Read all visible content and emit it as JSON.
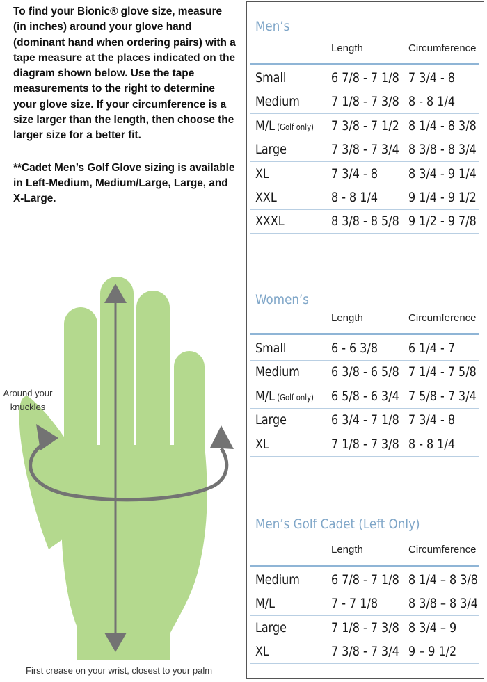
{
  "intro": {
    "paragraph": "To find your Bionic® glove size, measure (in inches) around your glove hand (dominant hand when ordering pairs) with a tape measure at the places indicated on the diagram shown below. Use the tape measurements to the right to determine your glove size. If your circumference is a size larger than the length, then choose the larger size for a better fit.",
    "note": "**Cadet Men’s Golf Glove sizing is available in Left-Medium, Medium/Large, Large, and X-Large."
  },
  "diagram": {
    "knuckles_label_line1": "Around your",
    "knuckles_label_line2": "knuckles",
    "wrist_label": "First crease on your wrist, closest to your palm",
    "colors": {
      "hand": "#b4d98e",
      "arrow": "#737373"
    }
  },
  "tables": {
    "column_length": "Length",
    "column_circumference": "Circumference",
    "accent_color": "#7fa6c8",
    "mens": {
      "title": "Men’s",
      "rows": [
        {
          "size": "Small",
          "length": "6 7/8 - 7 1/8",
          "circumference": "7 3/4 - 8"
        },
        {
          "size": "Medium",
          "length": "7 1/8 - 7 3/8",
          "circumference": "8 - 8 1/4"
        },
        {
          "size": "M/L",
          "note": "(Golf only)",
          "length": "7 3/8 - 7 1/2",
          "circumference": "8 1/4 - 8 3/8"
        },
        {
          "size": "Large",
          "length": "7 3/8 - 7 3/4",
          "circumference": "8 3/8 - 8 3/4"
        },
        {
          "size": "XL",
          "length": "7 3/4 - 8",
          "circumference": "8 3/4 - 9 1/4"
        },
        {
          "size": "XXL",
          "length": "8 - 8 1/4",
          "circumference": "9 1/4 - 9 1/2"
        },
        {
          "size": "XXXL",
          "length": "8 3/8 - 8 5/8",
          "circumference": "9 1/2 - 9 7/8"
        }
      ]
    },
    "womens": {
      "title": "Women’s",
      "rows": [
        {
          "size": "Small",
          "length": "6 - 6 3/8",
          "circumference": "6 1/4 - 7"
        },
        {
          "size": "Medium",
          "length": "6 3/8 - 6 5/8",
          "circumference": "7 1/4 - 7 5/8"
        },
        {
          "size": "M/L",
          "note": "(Golf only)",
          "length": "6 5/8 - 6 3/4",
          "circumference": "7 5/8 - 7 3/4"
        },
        {
          "size": "Large",
          "length": "6 3/4 - 7 1/8",
          "circumference": "7 3/4 - 8"
        },
        {
          "size": "XL",
          "length": "7 1/8 - 7 3/8",
          "circumference": "8 - 8 1/4"
        }
      ]
    },
    "cadet": {
      "title": "Men’s Golf Cadet (Left Only)",
      "rows": [
        {
          "size": "Medium",
          "length": "6 7/8 - 7 1/8",
          "circumference": "8 1/4 – 8 3/8"
        },
        {
          "size": "M/L",
          "length": "7 - 7 1/8",
          "circumference": "8 3/8 – 8 3/4"
        },
        {
          "size": "Large",
          "length": "7 1/8 - 7 3/8",
          "circumference": "8 3/4 – 9"
        },
        {
          "size": "XL",
          "length": "7 3/8 - 7 3/4",
          "circumference": "9 – 9 1/2"
        }
      ]
    }
  }
}
